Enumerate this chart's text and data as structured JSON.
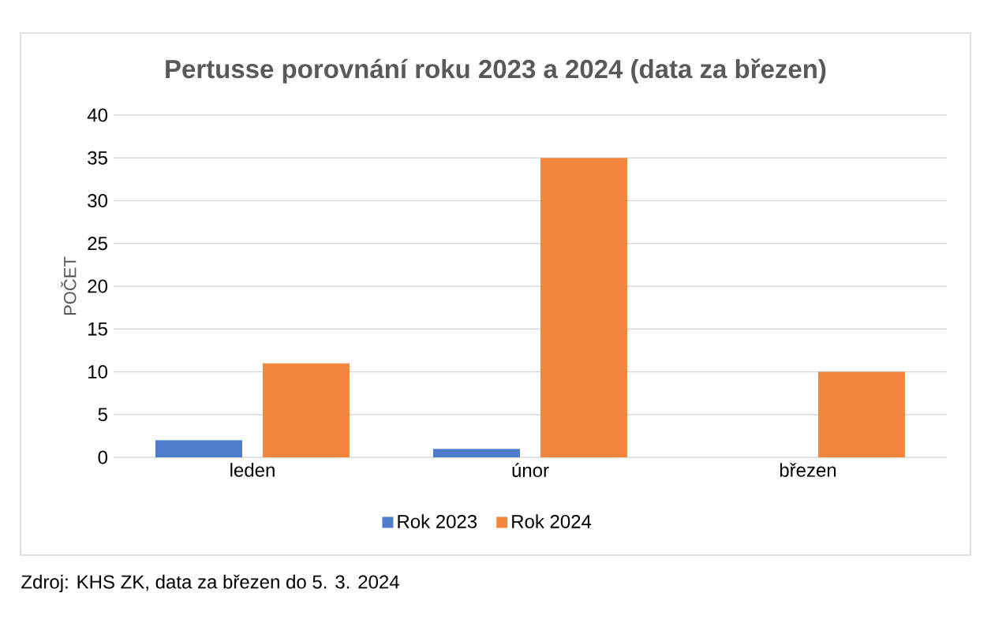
{
  "chart_data": {
    "type": "bar",
    "title": "Pertusse porovnání roku 2023 a 2024 (data za březen)",
    "ylabel": "POČET",
    "categories": [
      "leden",
      "únor",
      "březen"
    ],
    "series": [
      {
        "name": "Rok 2023",
        "color": "#4f7ccb",
        "values": [
          2,
          1,
          0
        ]
      },
      {
        "name": "Rok 2024",
        "color": "#f3863f",
        "values": [
          11,
          35,
          10
        ]
      }
    ],
    "ylim": [
      0,
      40
    ],
    "yticks": [
      0,
      5,
      10,
      15,
      20,
      25,
      30,
      35,
      40
    ],
    "grid": "y",
    "legend": "bottom",
    "annotations": [
      "Zdroj: KHS ZK, data za březen do 5. 3. 2024"
    ]
  }
}
